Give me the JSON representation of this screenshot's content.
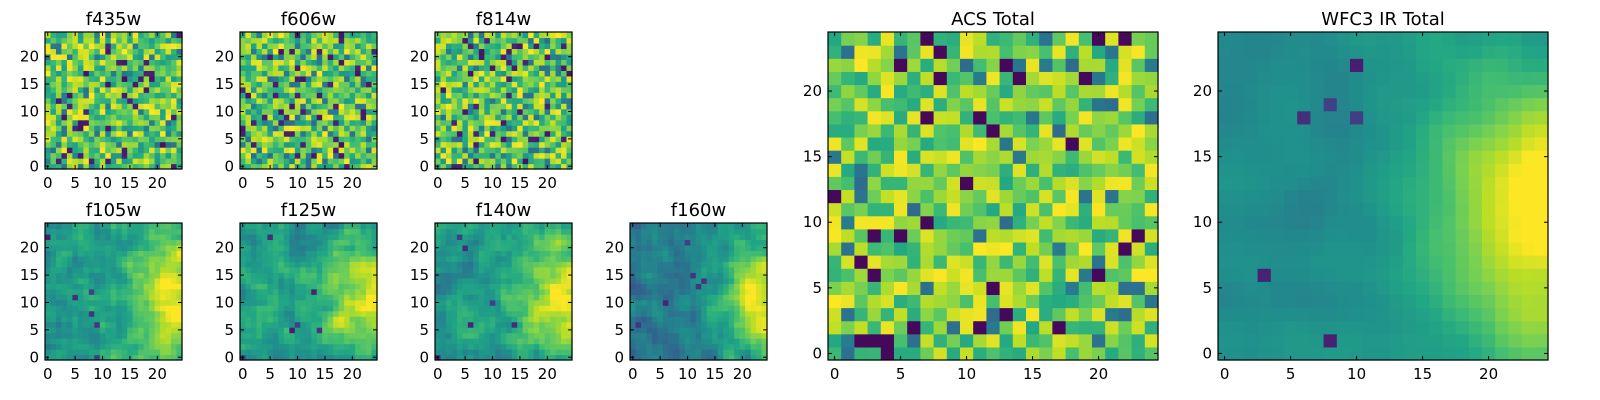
{
  "chart_data": [
    {
      "type": "heatmap",
      "title": "f435w",
      "size": 25,
      "style": "noise",
      "seed": 11,
      "xticks": [
        0,
        5,
        10,
        15,
        20
      ],
      "yticks": [
        0,
        5,
        10,
        15,
        20
      ]
    },
    {
      "type": "heatmap",
      "title": "f606w",
      "size": 25,
      "style": "noise",
      "seed": 23,
      "xticks": [
        0,
        5,
        10,
        15,
        20
      ],
      "yticks": [
        0,
        5,
        10,
        15,
        20
      ]
    },
    {
      "type": "heatmap",
      "title": "f814w",
      "size": 25,
      "style": "noise",
      "seed": 37,
      "xticks": [
        0,
        5,
        10,
        15,
        20
      ],
      "yticks": [
        0,
        5,
        10,
        15,
        20
      ]
    },
    {
      "type": "heatmap",
      "title": "f105w",
      "size": 25,
      "style": "gradient",
      "seed": 41,
      "xticks": [
        0,
        5,
        10,
        15,
        20
      ],
      "yticks": [
        0,
        5,
        10,
        15,
        20
      ]
    },
    {
      "type": "heatmap",
      "title": "f125w",
      "size": 25,
      "style": "gradient",
      "seed": 53,
      "xticks": [
        0,
        5,
        10,
        15,
        20
      ],
      "yticks": [
        0,
        5,
        10,
        15,
        20
      ]
    },
    {
      "type": "heatmap",
      "title": "f140w",
      "size": 25,
      "style": "gradient",
      "seed": 67,
      "xticks": [
        0,
        5,
        10,
        15,
        20
      ],
      "yticks": [
        0,
        5,
        10,
        15,
        20
      ]
    },
    {
      "type": "heatmap",
      "title": "f160w",
      "size": 25,
      "style": "gradient-strong",
      "seed": 79,
      "xticks": [
        0,
        5,
        10,
        15,
        20
      ],
      "yticks": [
        0,
        5,
        10,
        15,
        20
      ]
    },
    {
      "type": "heatmap",
      "title": "ACS Total",
      "size": 25,
      "style": "noise-bright",
      "seed": 97,
      "xticks": [
        0,
        5,
        10,
        15,
        20
      ],
      "yticks": [
        0,
        5,
        10,
        15,
        20
      ]
    },
    {
      "type": "heatmap",
      "title": "WFC3 IR Total",
      "size": 25,
      "style": "gradient-smooth",
      "seed": 103,
      "xticks": [
        0,
        5,
        10,
        15,
        20
      ],
      "yticks": [
        0,
        5,
        10,
        15,
        20
      ]
    }
  ]
}
